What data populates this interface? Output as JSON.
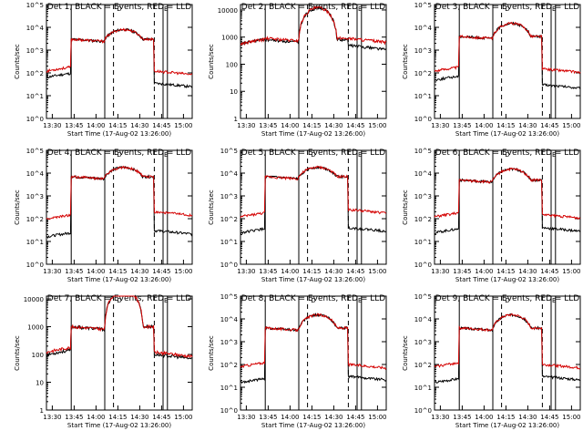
{
  "chart_data": [
    {
      "type": "line",
      "title": "Det 1, BLACK = Events, RED = LLD",
      "ylabel": "Counts/sec",
      "xlabel": "Start Time (17-Aug-02 13:26:00)",
      "x_ticks": [
        "13:30",
        "13:45",
        "14:00",
        "14:15",
        "14:30",
        "14:45",
        "15:00"
      ],
      "y_ticks": [
        "10^0",
        "10^1",
        "10^2",
        "10^3",
        "10^4",
        "10^5"
      ],
      "y_log": [
        0,
        5
      ],
      "series": [
        {
          "name": "Events",
          "color": "#000000"
        },
        {
          "name": "LLD",
          "color": "#d40000"
        }
      ],
      "events_shape": {
        "pre": 80,
        "plateau": 3000,
        "peak": 8000,
        "post": 35
      },
      "lld_shape": {
        "pre": 150,
        "plateau": 3000,
        "peak": 8000,
        "post": 120
      },
      "markers": {
        "solid": [
          "13:43",
          "14:06",
          "14:46",
          "14:49"
        ],
        "dashed": [
          "14:12",
          "14:40"
        ],
        "flags": [
          "D",
          "E"
        ]
      }
    },
    {
      "type": "line",
      "title": "Det 2, BLACK = Events, RED = LLD",
      "ylabel": "Counts/sec",
      "xlabel": "Start Time (17-Aug-02 13:26:00)",
      "x_ticks": [
        "13:30",
        "13:45",
        "14:00",
        "14:15",
        "14:30",
        "14:45",
        "15:00"
      ],
      "y_ticks": [
        "1",
        "10",
        "100",
        "1000",
        "10000"
      ],
      "y_log": [
        0,
        4.2
      ],
      "series": [
        {
          "name": "Events",
          "color": "#000000"
        },
        {
          "name": "LLD",
          "color": "#d40000"
        }
      ],
      "events_shape": {
        "pre": 700,
        "plateau": 800,
        "peak": 12000,
        "post": 500
      },
      "lld_shape": {
        "pre": 700,
        "plateau": 900,
        "peak": 12000,
        "post": 900
      },
      "markers": {
        "solid": [
          "13:43",
          "14:06",
          "14:46",
          "14:49"
        ],
        "dashed": [
          "14:12",
          "14:40"
        ],
        "flags": [
          "D",
          "E"
        ]
      }
    },
    {
      "type": "line",
      "title": "Det 3, BLACK = Events, RED = LLD",
      "ylabel": "Counts/sec",
      "xlabel": "Start Time (17-Aug-02 13:26:00)",
      "x_ticks": [
        "13:30",
        "13:45",
        "14:00",
        "14:15",
        "14:30",
        "14:45",
        "15:00"
      ],
      "y_ticks": [
        "10^0",
        "10^1",
        "10^2",
        "10^3",
        "10^4",
        "10^5"
      ],
      "y_log": [
        0,
        5
      ],
      "series": [
        {
          "name": "Events",
          "color": "#000000"
        },
        {
          "name": "LLD",
          "color": "#d40000"
        }
      ],
      "events_shape": {
        "pre": 60,
        "plateau": 4000,
        "peak": 15000,
        "post": 30
      },
      "lld_shape": {
        "pre": 150,
        "plateau": 4000,
        "peak": 15000,
        "post": 150
      },
      "markers": {
        "solid": [
          "13:43",
          "14:06",
          "14:46",
          "14:49"
        ],
        "dashed": [
          "14:12",
          "14:40"
        ],
        "flags": [
          "D",
          "E"
        ]
      }
    },
    {
      "type": "line",
      "title": "Det 4, BLACK = Events, RED = LLD",
      "ylabel": "Counts/sec",
      "xlabel": "Start Time (17-Aug-02 13:26:00)",
      "x_ticks": [
        "13:30",
        "13:45",
        "14:00",
        "14:15",
        "14:30",
        "14:45",
        "15:00"
      ],
      "y_ticks": [
        "10^0",
        "10^1",
        "10^2",
        "10^3",
        "10^4",
        "10^5"
      ],
      "y_log": [
        0,
        5
      ],
      "series": [
        {
          "name": "Events",
          "color": "#000000"
        },
        {
          "name": "LLD",
          "color": "#d40000"
        }
      ],
      "events_shape": {
        "pre": 20,
        "plateau": 7000,
        "peak": 18000,
        "post": 30
      },
      "lld_shape": {
        "pre": 120,
        "plateau": 7000,
        "peak": 18000,
        "post": 200
      },
      "markers": {
        "solid": [
          "13:43",
          "14:06",
          "14:46",
          "14:49"
        ],
        "dashed": [
          "14:12",
          "14:40"
        ],
        "flags": [
          "D",
          "E"
        ]
      }
    },
    {
      "type": "line",
      "title": "Det 5, BLACK = Events, RED = LLD",
      "ylabel": "Counts/sec",
      "xlabel": "Start Time (17-Aug-02 13:26:00)",
      "x_ticks": [
        "13:30",
        "13:45",
        "14:00",
        "14:15",
        "14:30",
        "14:45",
        "15:00"
      ],
      "y_ticks": [
        "10^0",
        "10^1",
        "10^2",
        "10^3",
        "10^4",
        "10^5"
      ],
      "y_log": [
        0,
        5
      ],
      "series": [
        {
          "name": "Events",
          "color": "#000000"
        },
        {
          "name": "LLD",
          "color": "#d40000"
        }
      ],
      "events_shape": {
        "pre": 30,
        "plateau": 7000,
        "peak": 18000,
        "post": 40
      },
      "lld_shape": {
        "pre": 150,
        "plateau": 7000,
        "peak": 18000,
        "post": 250
      },
      "markers": {
        "solid": [
          "13:43",
          "14:06",
          "14:46",
          "14:49"
        ],
        "dashed": [
          "14:12",
          "14:40"
        ],
        "flags": [
          "D",
          "E"
        ]
      }
    },
    {
      "type": "line",
      "title": "Det 6, BLACK = Events, RED = LLD",
      "ylabel": "Counts/sec",
      "xlabel": "Start Time (17-Aug-02 13:26:00)",
      "x_ticks": [
        "13:30",
        "13:45",
        "14:00",
        "14:15",
        "14:30",
        "14:45",
        "15:00"
      ],
      "y_ticks": [
        "10^0",
        "10^1",
        "10^2",
        "10^3",
        "10^4",
        "10^5"
      ],
      "y_log": [
        0,
        5
      ],
      "series": [
        {
          "name": "Events",
          "color": "#000000"
        },
        {
          "name": "LLD",
          "color": "#d40000"
        }
      ],
      "events_shape": {
        "pre": 30,
        "plateau": 5000,
        "peak": 15000,
        "post": 40
      },
      "lld_shape": {
        "pre": 150,
        "plateau": 5000,
        "peak": 15000,
        "post": 150
      },
      "markers": {
        "solid": [
          "13:43",
          "14:06",
          "14:46",
          "14:49"
        ],
        "dashed": [
          "14:12",
          "14:40"
        ],
        "flags": [
          "D",
          "E"
        ]
      }
    },
    {
      "type": "line",
      "title": "Det 7, BLACK = Events, RED = LLD",
      "ylabel": "Counts/sec",
      "xlabel": "Start Time (17-Aug-02 13:26:00)",
      "x_ticks": [
        "13:30",
        "13:45",
        "14:00",
        "14:15",
        "14:30",
        "14:45",
        "15:00"
      ],
      "y_ticks": [
        "1",
        "10",
        "100",
        "1000",
        "10000"
      ],
      "y_log": [
        0,
        4.1
      ],
      "series": [
        {
          "name": "Events",
          "color": "#000000"
        },
        {
          "name": "LLD",
          "color": "#d40000"
        }
      ],
      "events_shape": {
        "pre": 120,
        "plateau": 1000,
        "peak": 20000,
        "post": 100
      },
      "lld_shape": {
        "pre": 150,
        "plateau": 1000,
        "peak": 20000,
        "post": 120
      },
      "markers": {
        "solid": [
          "13:43",
          "14:06",
          "14:46",
          "14:49"
        ],
        "dashed": [
          "14:12",
          "14:40"
        ],
        "flags": [
          "D",
          "E"
        ]
      }
    },
    {
      "type": "line",
      "title": "Det 8, BLACK = Events, RED = LLD",
      "ylabel": "Counts/sec",
      "xlabel": "Start Time (17-Aug-02 13:26:00)",
      "x_ticks": [
        "13:30",
        "13:45",
        "14:00",
        "14:15",
        "14:30",
        "14:45",
        "15:00"
      ],
      "y_ticks": [
        "10^0",
        "10^1",
        "10^2",
        "10^3",
        "10^4",
        "10^5"
      ],
      "y_log": [
        0,
        5
      ],
      "series": [
        {
          "name": "Events",
          "color": "#000000"
        },
        {
          "name": "LLD",
          "color": "#d40000"
        }
      ],
      "events_shape": {
        "pre": 20,
        "plateau": 4000,
        "peak": 15000,
        "post": 30
      },
      "lld_shape": {
        "pre": 100,
        "plateau": 4000,
        "peak": 15000,
        "post": 100
      },
      "markers": {
        "solid": [
          "13:43",
          "14:06",
          "14:46",
          "14:49"
        ],
        "dashed": [
          "14:12",
          "14:40"
        ],
        "flags": [
          "D",
          "E"
        ]
      }
    },
    {
      "type": "line",
      "title": "Det 9, BLACK = Events, RED = LLD",
      "ylabel": "Counts/sec",
      "xlabel": "Start Time (17-Aug-02 13:26:00)",
      "x_ticks": [
        "13:30",
        "13:45",
        "14:00",
        "14:15",
        "14:30",
        "14:45",
        "15:00"
      ],
      "y_ticks": [
        "10^0",
        "10^1",
        "10^2",
        "10^3",
        "10^4",
        "10^5"
      ],
      "y_log": [
        0,
        5
      ],
      "series": [
        {
          "name": "Events",
          "color": "#000000"
        },
        {
          "name": "LLD",
          "color": "#d40000"
        }
      ],
      "events_shape": {
        "pre": 20,
        "plateau": 4000,
        "peak": 15000,
        "post": 30
      },
      "lld_shape": {
        "pre": 100,
        "plateau": 4000,
        "peak": 15000,
        "post": 100
      },
      "markers": {
        "solid": [
          "13:43",
          "14:06",
          "14:46",
          "14:49"
        ],
        "dashed": [
          "14:12",
          "14:40"
        ],
        "flags": [
          "D",
          "E"
        ]
      }
    }
  ]
}
